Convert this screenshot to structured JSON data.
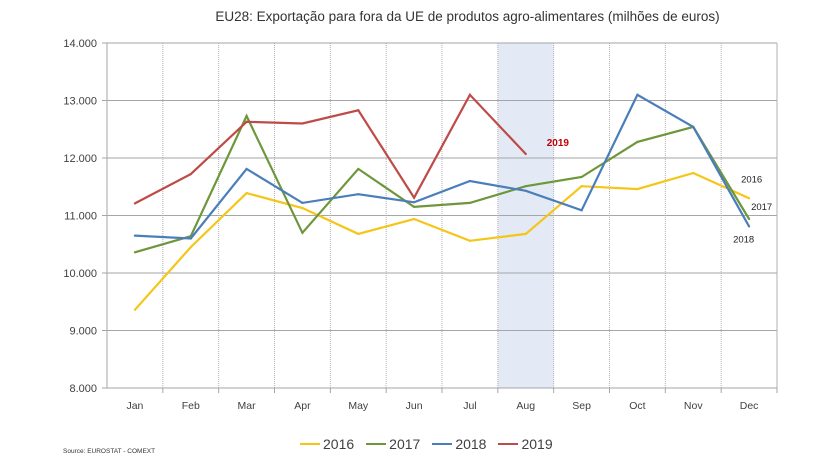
{
  "chart_data": {
    "type": "line",
    "title": "EU28: Exportação para fora da UE de produtos agro-alimentares (milhões de euros)",
    "xlabel": "",
    "ylabel": "",
    "categories": [
      "Jan",
      "Feb",
      "Mar",
      "Apr",
      "May",
      "Jun",
      "Jul",
      "Aug",
      "Sep",
      "Oct",
      "Nov",
      "Dec"
    ],
    "ylim": [
      8000,
      14000
    ],
    "yticks": [
      8000,
      9000,
      10000,
      11000,
      12000,
      13000,
      14000
    ],
    "ytick_labels": [
      "8.000",
      "9.000",
      "10.000",
      "11.000",
      "12.000",
      "13.000",
      "14.000"
    ],
    "grid": true,
    "highlight_category": "Aug",
    "highlight_color": "#e3eaf5",
    "series": [
      {
        "name": "2016",
        "color": "#f5c518",
        "values": [
          9360,
          10450,
          11390,
          11130,
          10680,
          10940,
          10560,
          10680,
          11510,
          11460,
          11740,
          11300
        ],
        "end_label": "2016"
      },
      {
        "name": "2017",
        "color": "#6e963a",
        "values": [
          10360,
          10640,
          12730,
          10700,
          11810,
          11150,
          11220,
          11510,
          11670,
          12280,
          12540,
          10940
        ],
        "end_label": "2017"
      },
      {
        "name": "2018",
        "color": "#4a7ebb",
        "values": [
          10650,
          10600,
          11810,
          11220,
          11370,
          11230,
          11600,
          11430,
          11090,
          13100,
          12540,
          10810
        ],
        "end_label": "2018"
      },
      {
        "name": "2019",
        "color": "#be4b48",
        "values": [
          11210,
          11720,
          12630,
          12600,
          12830,
          11310,
          13100,
          12070
        ],
        "end_label": "2019"
      }
    ],
    "legend": {
      "position": "bottom",
      "entries": [
        "2016",
        "2017",
        "2018",
        "2019"
      ]
    },
    "annotations": [
      {
        "text": "2019",
        "series": "2019",
        "color": "#c00000"
      }
    ],
    "source": "Source: EUROSTAT - COMEXT"
  }
}
